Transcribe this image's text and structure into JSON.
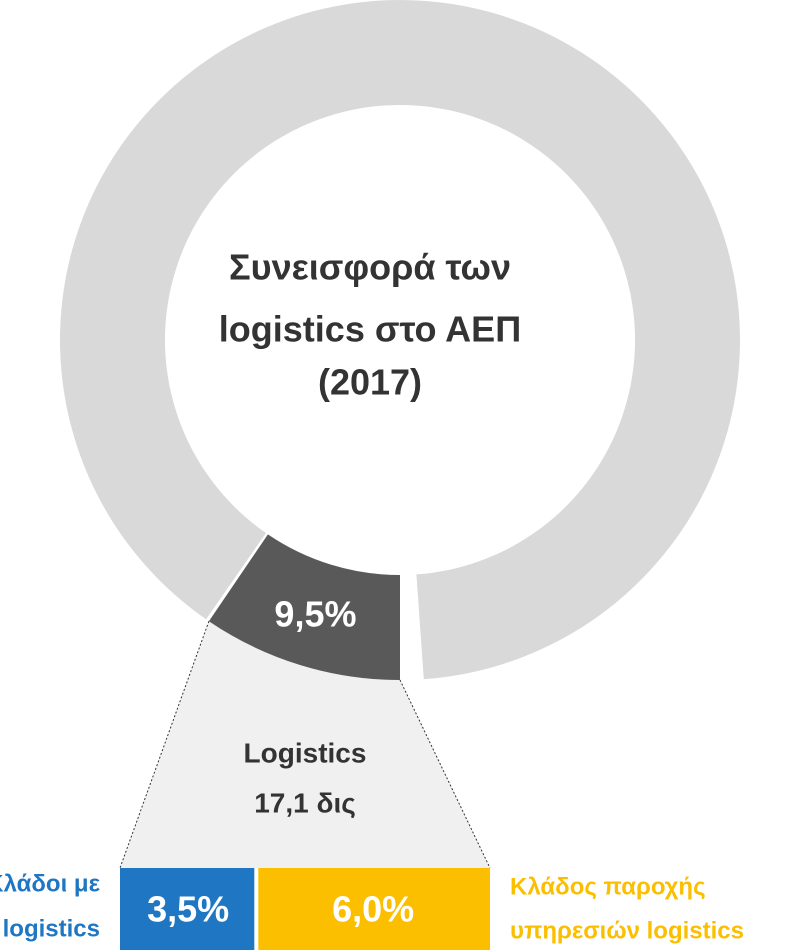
{
  "donut": {
    "title": [
      "Συνεισφορά των",
      "logistics στο ΑΕΠ",
      "(2017)"
    ],
    "share": 9.5,
    "share_label": "9,5%"
  },
  "funnel": {
    "label": [
      "Logistics",
      "17,1 δις"
    ]
  },
  "bars": [
    {
      "value": 3.5,
      "label": "3,5%",
      "name": [
        "Κλάδοι με",
        "logistics"
      ],
      "color": "#1f77c4"
    },
    {
      "value": 6.0,
      "label": "6,0%",
      "name": [
        "Κλάδος παροχής",
        "υπηρεσιών logistics"
      ],
      "color": "#fbbf00"
    }
  ]
}
